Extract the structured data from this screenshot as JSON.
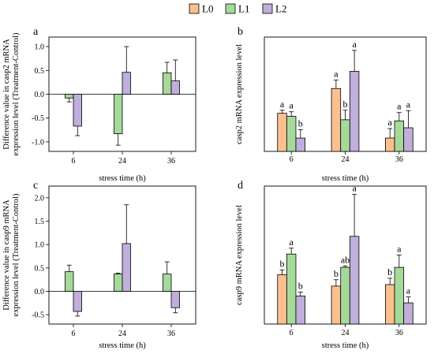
{
  "colors": {
    "L0": "#fbc08e",
    "L1": "#a6d99a",
    "L2": "#c0aedb",
    "stroke": "#000000"
  },
  "legend": [
    "L0",
    "L1",
    "L2"
  ],
  "chart_data": [
    {
      "panel_label": "a",
      "type": "bar",
      "xlabel": "stress time (h)",
      "ylabel_lines": [
        "Difference value in casp2 mRNA",
        "expression level (Treatment-Control)"
      ],
      "categories": [
        "6",
        "24",
        "36"
      ],
      "ylim": [
        -1.2,
        1.2
      ],
      "yticks": [
        "-1.0",
        "-0.5",
        "0.0",
        "0.5",
        "1.0"
      ],
      "ytick_values": [
        -1.0,
        -0.5,
        0.0,
        0.5,
        1.0
      ],
      "show_zero_line": true,
      "series": [
        {
          "key": "L1",
          "values": [
            -0.08,
            -0.83,
            0.45
          ],
          "errors": [
            0.08,
            0.24,
            0.22
          ]
        },
        {
          "key": "L2",
          "values": [
            -0.67,
            0.46,
            0.28
          ],
          "errors": [
            0.2,
            0.54,
            0.44
          ]
        }
      ]
    },
    {
      "panel_label": "b",
      "type": "bar",
      "xlabel": "stress time (h)",
      "ylabel_lines": [
        "casp2 mRNA expression level"
      ],
      "categories": [
        "6",
        "24",
        "36"
      ],
      "ylim": [
        0,
        3.0
      ],
      "yticks": [],
      "ytick_values": [],
      "series": [
        {
          "key": "L0",
          "values": [
            1.0,
            1.65,
            0.35
          ],
          "errors": [
            0.08,
            0.22,
            0.25
          ],
          "letters": [
            "a",
            "a",
            "a"
          ]
        },
        {
          "key": "L1",
          "values": [
            0.92,
            0.83,
            0.8
          ],
          "errors": [
            0.12,
            0.25,
            0.22
          ],
          "letters": [
            "a",
            "b",
            "a"
          ]
        },
        {
          "key": "L2",
          "values": [
            0.35,
            2.1,
            0.62
          ],
          "errors": [
            0.22,
            0.55,
            0.45
          ],
          "letters": [
            "b",
            "a",
            "a"
          ]
        }
      ]
    },
    {
      "panel_label": "c",
      "type": "bar",
      "xlabel": "stress time (h)",
      "ylabel_lines": [
        "Difference value in casp9 mRNA",
        "expression level (Treatment-Control)"
      ],
      "categories": [
        "6",
        "24",
        "36"
      ],
      "ylim": [
        -0.7,
        2.25
      ],
      "yticks": [
        "-0.5",
        "0.0",
        "0.5",
        "1.0",
        "1.5",
        "2.0"
      ],
      "ytick_values": [
        -0.5,
        0.0,
        0.5,
        1.0,
        1.5,
        2.0
      ],
      "show_zero_line": true,
      "series": [
        {
          "key": "L1",
          "values": [
            0.42,
            0.37,
            0.37
          ],
          "errors": [
            0.14,
            0.02,
            0.26
          ]
        },
        {
          "key": "L2",
          "values": [
            -0.43,
            1.02,
            -0.35
          ],
          "errors": [
            0.1,
            0.83,
            0.11
          ]
        }
      ]
    },
    {
      "panel_label": "d",
      "type": "bar",
      "xlabel": "stress time (h)",
      "ylabel_lines": [
        "casp9 mRNA expression level"
      ],
      "categories": [
        "6",
        "24",
        "36"
      ],
      "ylim": [
        0,
        2.8
      ],
      "yticks": [],
      "ytick_values": [],
      "series": [
        {
          "key": "L0",
          "values": [
            1.0,
            0.77,
            0.8
          ],
          "errors": [
            0.1,
            0.13,
            0.13
          ],
          "letters": [
            "b",
            "b",
            "b"
          ]
        },
        {
          "key": "L1",
          "values": [
            1.42,
            1.15,
            1.15
          ],
          "errors": [
            0.12,
            0.03,
            0.25
          ],
          "letters": [
            "a",
            "ab",
            "a"
          ]
        },
        {
          "key": "L2",
          "values": [
            0.57,
            1.78,
            0.43
          ],
          "errors": [
            0.08,
            0.85,
            0.12
          ],
          "letters": [
            "b",
            "a",
            "a"
          ]
        }
      ]
    }
  ]
}
